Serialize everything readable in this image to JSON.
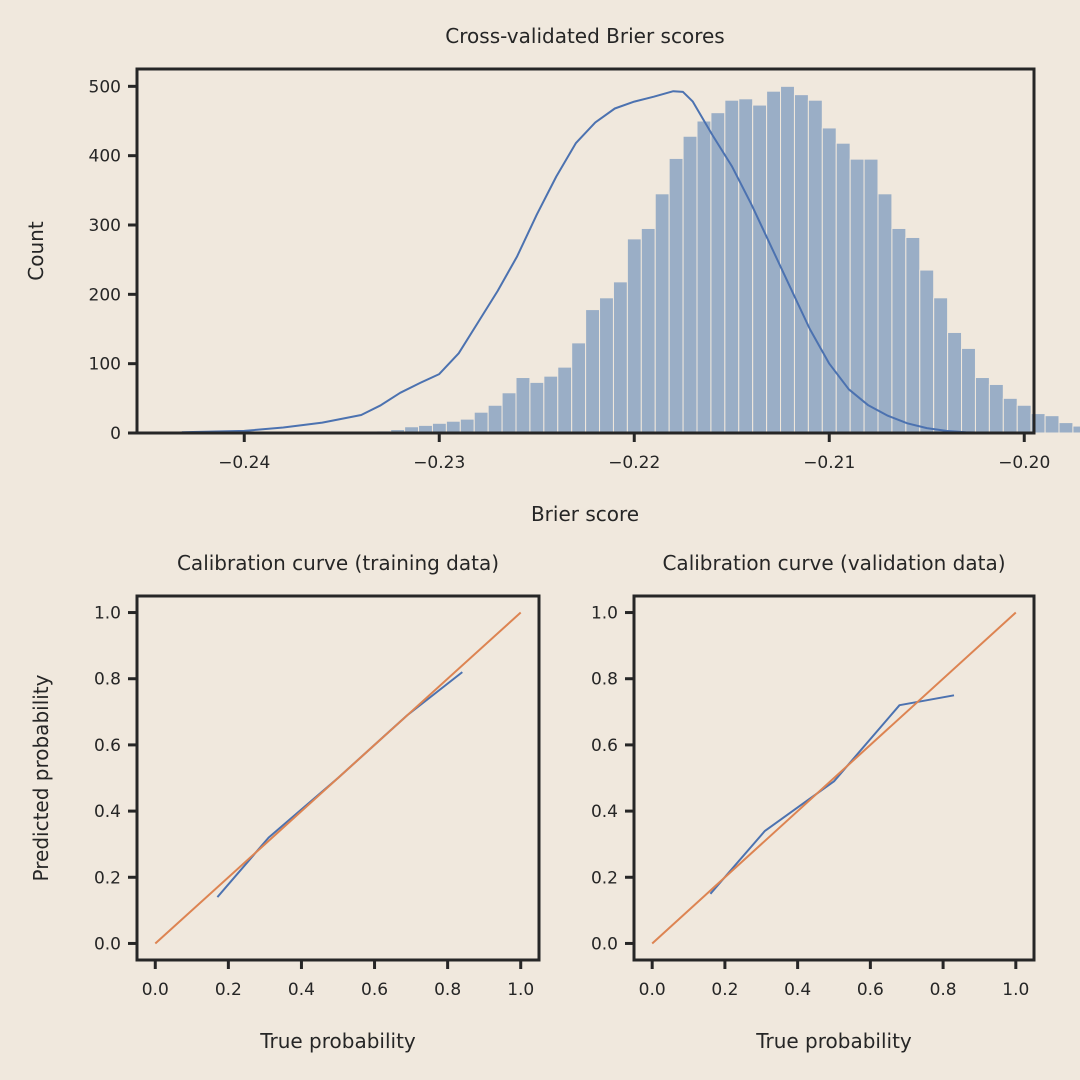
{
  "chart_data": [
    {
      "type": "histogram",
      "title": "Cross-validated Brier scores",
      "xlabel": "Brier score",
      "ylabel": "Count",
      "xlim": [
        -0.2455,
        -0.1995
      ],
      "ylim": [
        0,
        525
      ],
      "xticks": [
        -0.24,
        -0.23,
        -0.22,
        -0.21,
        -0.2
      ],
      "xtick_labels": [
        "−0.24",
        "−0.23",
        "−0.22",
        "−0.21",
        "−0.20"
      ],
      "yticks": [
        0,
        100,
        200,
        300,
        400,
        500
      ],
      "ytick_labels": [
        "0",
        "100",
        "200",
        "300",
        "400",
        "500"
      ],
      "grid": false,
      "bar_color": "#9aaec6",
      "kde_color": "#4c72b0",
      "bin_start": -0.2432,
      "bin_width": 0.000714,
      "counts": [
        0,
        0,
        0,
        0,
        0,
        0,
        0,
        0,
        0,
        0,
        0,
        1,
        1,
        2,
        3,
        5,
        9,
        11,
        14,
        17,
        20,
        30,
        40,
        58,
        80,
        73,
        82,
        95,
        130,
        178,
        195,
        218,
        280,
        295,
        345,
        396,
        428,
        450,
        462,
        480,
        482,
        473,
        493,
        500,
        488,
        480,
        440,
        418,
        395,
        395,
        345,
        295,
        282,
        235,
        195,
        145,
        122,
        80,
        70,
        50,
        40,
        28,
        25,
        15,
        10,
        5,
        3,
        2,
        1,
        1
      ],
      "kde_x": [
        -0.2432,
        -0.24,
        -0.238,
        -0.236,
        -0.234,
        -0.233,
        -0.232,
        -0.231,
        -0.23,
        -0.229,
        -0.228,
        -0.227,
        -0.226,
        -0.225,
        -0.224,
        -0.223,
        -0.222,
        -0.221,
        -0.22,
        -0.219,
        -0.218,
        -0.2175,
        -0.217,
        -0.216,
        -0.215,
        -0.214,
        -0.213,
        -0.212,
        -0.211,
        -0.21,
        -0.209,
        -0.208,
        -0.207,
        -0.206,
        -0.205,
        -0.204,
        -0.203,
        -0.2015
      ],
      "kde_y": [
        1,
        3,
        8,
        15,
        26,
        40,
        58,
        72,
        85,
        115,
        160,
        205,
        255,
        315,
        370,
        418,
        448,
        468,
        478,
        485,
        493,
        492,
        478,
        430,
        385,
        330,
        270,
        210,
        150,
        100,
        63,
        40,
        25,
        14,
        7,
        3,
        1,
        0
      ]
    },
    {
      "type": "line",
      "title": "Calibration curve (training data)",
      "xlabel": "True probability",
      "ylabel": "Predicted probability",
      "xlim": [
        -0.05,
        1.05
      ],
      "ylim": [
        -0.05,
        1.05
      ],
      "xticks": [
        0.0,
        0.2,
        0.4,
        0.6,
        0.8,
        1.0
      ],
      "xtick_labels": [
        "0.0",
        "0.2",
        "0.4",
        "0.6",
        "0.8",
        "1.0"
      ],
      "yticks": [
        0.0,
        0.2,
        0.4,
        0.6,
        0.8,
        1.0
      ],
      "ytick_labels": [
        "0.0",
        "0.2",
        "0.4",
        "0.6",
        "0.8",
        "1.0"
      ],
      "grid": false,
      "series": [
        {
          "color": "#4c72b0",
          "x": [
            0.17,
            0.31,
            0.5,
            0.69,
            0.84
          ],
          "y": [
            0.14,
            0.32,
            0.5,
            0.69,
            0.82
          ]
        },
        {
          "color": "#dd8452",
          "x": [
            0.0,
            1.0
          ],
          "y": [
            0.0,
            1.0
          ]
        }
      ]
    },
    {
      "type": "line",
      "title": "Calibration curve (validation data)",
      "xlabel": "True probability",
      "ylabel": "",
      "xlim": [
        -0.05,
        1.05
      ],
      "ylim": [
        -0.05,
        1.05
      ],
      "xticks": [
        0.0,
        0.2,
        0.4,
        0.6,
        0.8,
        1.0
      ],
      "xtick_labels": [
        "0.0",
        "0.2",
        "0.4",
        "0.6",
        "0.8",
        "1.0"
      ],
      "yticks": [
        0.0,
        0.2,
        0.4,
        0.6,
        0.8,
        1.0
      ],
      "ytick_labels": [
        "0.0",
        "0.2",
        "0.4",
        "0.6",
        "0.8",
        "1.0"
      ],
      "grid": false,
      "series": [
        {
          "color": "#4c72b0",
          "x": [
            0.16,
            0.31,
            0.5,
            0.68,
            0.83
          ],
          "y": [
            0.15,
            0.34,
            0.49,
            0.72,
            0.75
          ]
        },
        {
          "color": "#dd8452",
          "x": [
            0.0,
            1.0
          ],
          "y": [
            0.0,
            1.0
          ]
        }
      ]
    }
  ]
}
